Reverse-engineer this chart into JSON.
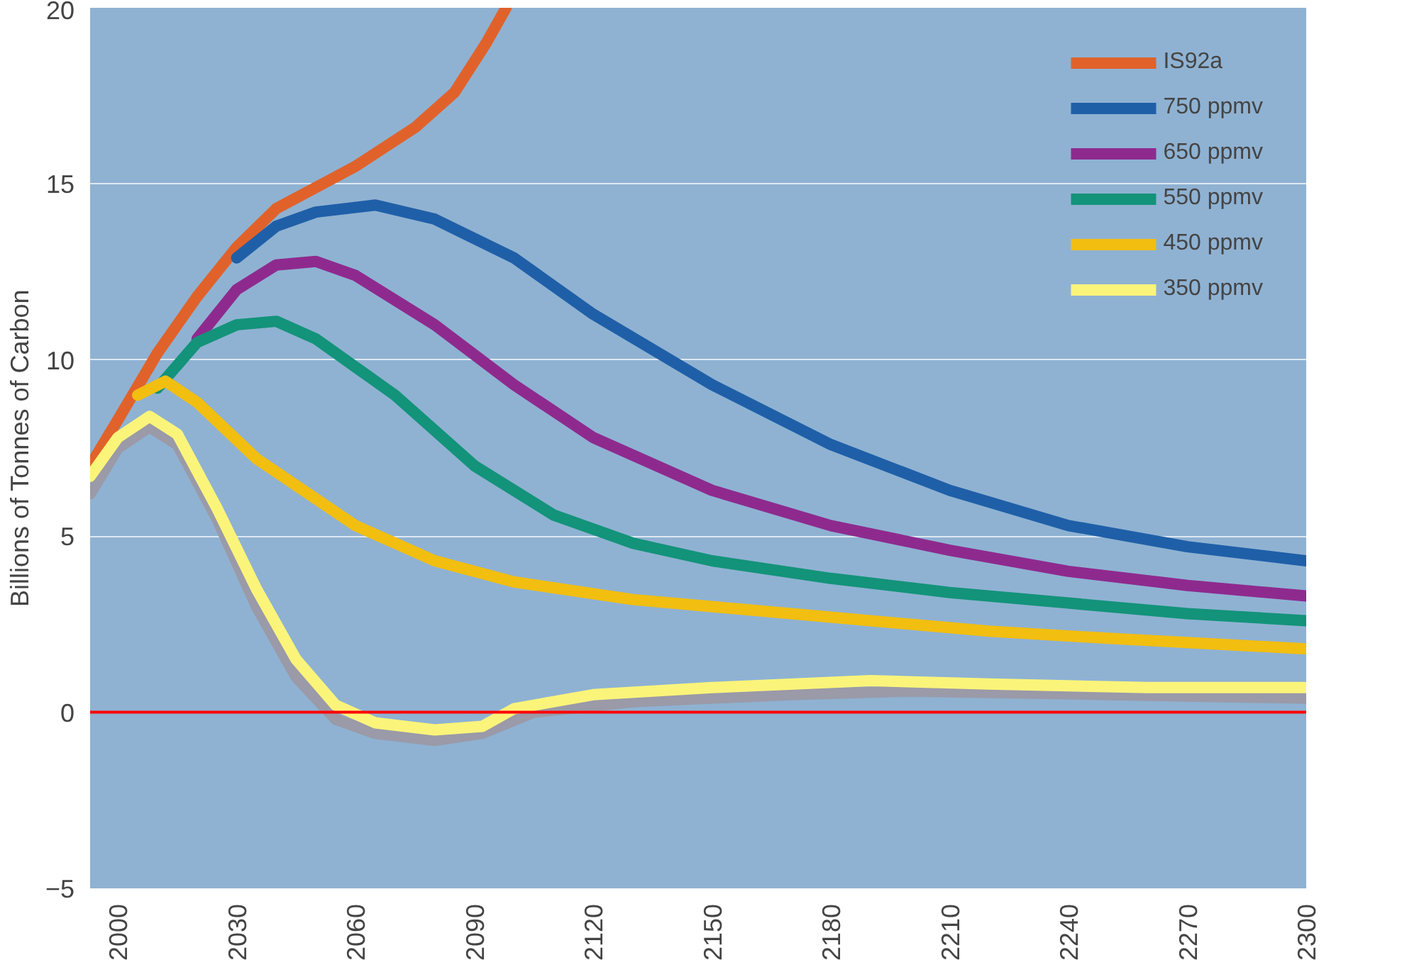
{
  "chart_data": {
    "type": "line",
    "ylabel": "Billions of Tonnes of Carbon",
    "xlim": [
      1993,
      2300
    ],
    "ylim": [
      -5,
      20
    ],
    "xticks": [
      2000,
      2030,
      2060,
      2090,
      2120,
      2150,
      2180,
      2210,
      2240,
      2270,
      2300
    ],
    "yticks": [
      -5,
      0,
      5,
      10,
      15,
      20
    ],
    "grid": "y",
    "legend": "top right",
    "marker": "none",
    "line_style": "solid",
    "ref_lines": [
      {
        "axis": "y",
        "value": 0,
        "color": "#ff0000"
      }
    ],
    "series": [
      {
        "color": "#9a9aa8",
        "x": [
          1993,
          2000,
          2008,
          2015,
          2025,
          2035,
          2045,
          2055,
          2065,
          2080,
          2092,
          2105,
          2130,
          2170,
          2200,
          2250,
          2300
        ],
        "values": [
          6.2,
          7.5,
          8.1,
          7.6,
          5.5,
          3.0,
          1.0,
          -0.2,
          -0.6,
          -0.8,
          -0.6,
          0.0,
          0.3,
          0.5,
          0.6,
          0.5,
          0.4
        ]
      },
      {
        "name": "IS92a",
        "color": "#e0622a",
        "x": [
          1993,
          2000,
          2010,
          2020,
          2030,
          2040,
          2060,
          2075,
          2085,
          2093,
          2098
        ],
        "values": [
          7.0,
          8.3,
          10.2,
          11.8,
          13.2,
          14.3,
          15.5,
          16.6,
          17.6,
          19.0,
          20.0
        ]
      },
      {
        "name": "750 ppmv",
        "color": "#1f5fa8",
        "x": [
          2030,
          2040,
          2050,
          2065,
          2080,
          2100,
          2120,
          2150,
          2180,
          2210,
          2240,
          2270,
          2300
        ],
        "values": [
          12.9,
          13.8,
          14.2,
          14.4,
          14.0,
          12.9,
          11.3,
          9.3,
          7.6,
          6.3,
          5.3,
          4.7,
          4.3
        ]
      },
      {
        "name": "650 ppmv",
        "color": "#8e2a8e",
        "x": [
          2020,
          2030,
          2040,
          2050,
          2060,
          2080,
          2100,
          2120,
          2150,
          2180,
          2210,
          2240,
          2270,
          2300
        ],
        "values": [
          10.6,
          12.0,
          12.7,
          12.8,
          12.4,
          11.0,
          9.3,
          7.8,
          6.3,
          5.3,
          4.6,
          4.0,
          3.6,
          3.3
        ]
      },
      {
        "name": "550 ppmv",
        "color": "#13937a",
        "x": [
          2010,
          2020,
          2030,
          2040,
          2050,
          2070,
          2090,
          2110,
          2130,
          2150,
          2180,
          2210,
          2240,
          2270,
          2300
        ],
        "values": [
          9.2,
          10.5,
          11.0,
          11.1,
          10.6,
          9.0,
          7.0,
          5.6,
          4.8,
          4.3,
          3.8,
          3.4,
          3.1,
          2.8,
          2.6
        ]
      },
      {
        "name": "450 ppmv",
        "color": "#f2be10",
        "x": [
          2005,
          2012,
          2020,
          2035,
          2060,
          2080,
          2100,
          2130,
          2160,
          2190,
          2220,
          2250,
          2300
        ],
        "values": [
          9.0,
          9.4,
          8.8,
          7.2,
          5.3,
          4.3,
          3.7,
          3.2,
          2.9,
          2.6,
          2.3,
          2.1,
          1.8
        ]
      },
      {
        "name": "350 ppmv",
        "color": "#fbf47a",
        "x": [
          1993,
          2000,
          2008,
          2015,
          2025,
          2035,
          2045,
          2055,
          2065,
          2080,
          2092,
          2100,
          2120,
          2150,
          2190,
          2220,
          2260,
          2300
        ],
        "values": [
          6.7,
          7.8,
          8.4,
          7.9,
          5.8,
          3.5,
          1.5,
          0.2,
          -0.3,
          -0.5,
          -0.4,
          0.1,
          0.5,
          0.7,
          0.9,
          0.8,
          0.7,
          0.7
        ]
      }
    ]
  }
}
